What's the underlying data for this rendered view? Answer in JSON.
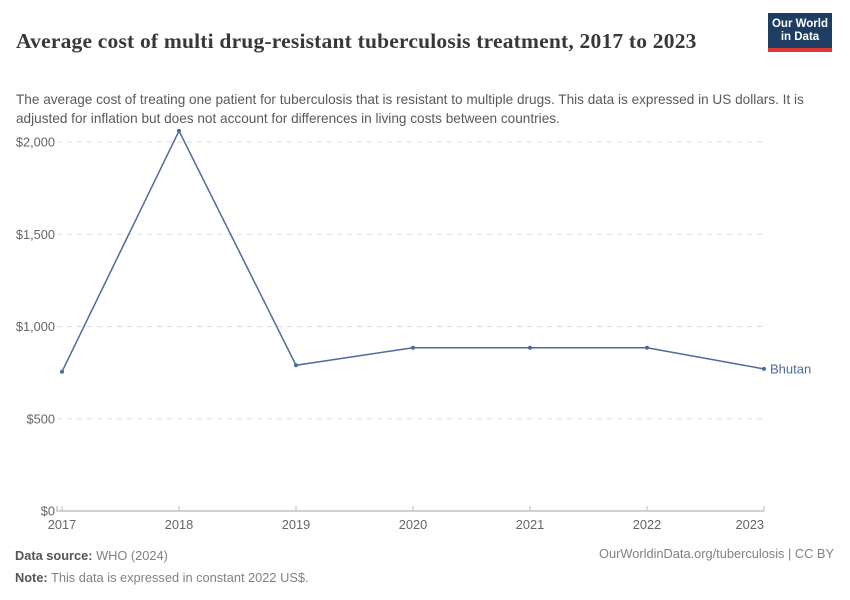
{
  "header": {
    "title": "Average cost of multi drug-resistant tuberculosis treatment, 2017 to 2023",
    "subtitle": "The average cost of treating one patient for tuberculosis that is resistant to multiple drugs. This data is expressed in US dollars. It is adjusted for inflation but does not account for differences in living costs between countries.",
    "logo": {
      "line1": "Our World",
      "line2": "in Data"
    }
  },
  "chart_data": {
    "type": "line",
    "title": "Average cost of multi drug-resistant tuberculosis treatment, 2017 to 2023",
    "x": [
      2017,
      2018,
      2019,
      2020,
      2021,
      2022,
      2023
    ],
    "x_tick_labels": [
      "2017",
      "2018",
      "2019",
      "2020",
      "2021",
      "2022",
      "2023"
    ],
    "y_ticks": [
      {
        "value": 0,
        "label": "$0"
      },
      {
        "value": 500,
        "label": "$500"
      },
      {
        "value": 1000,
        "label": "$1,000"
      },
      {
        "value": 1500,
        "label": "$1,500"
      },
      {
        "value": 2000,
        "label": "$2,000"
      }
    ],
    "ylim": [
      0,
      2100
    ],
    "unit": "constant 2022 US$",
    "grid": "horizontal dashed",
    "legend_position": "end-of-line label",
    "series": [
      {
        "name": "Bhutan",
        "values": [
          755,
          2060,
          790,
          885,
          885,
          885,
          770
        ],
        "color": "#4c6a9c"
      }
    ]
  },
  "footer": {
    "source_label": "Data source:",
    "source_value": " WHO (2024)",
    "note_label": "Note:",
    "note_value": " This data is expressed in constant 2022 US$.",
    "link": "OurWorldinData.org/tuberculosis | CC BY"
  },
  "colors": {
    "line": "#4c6a9c",
    "logo_navy": "#1d3d63",
    "logo_red": "#dc3a32",
    "gridline": "#dddddd",
    "axis": "#a5a5a5",
    "tick_label": "#666666"
  }
}
